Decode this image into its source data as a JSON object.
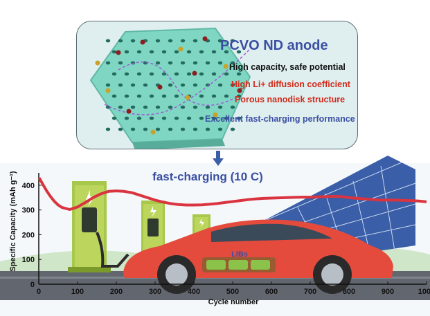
{
  "panel": {
    "title": "PCVO ND anode",
    "features": [
      {
        "text": "High capacity, safe potential",
        "color": "#111111"
      },
      {
        "text": "High Li+ diffusion coefficient",
        "color": "#d12a1a"
      },
      {
        "text": "Porous nanodisk structure",
        "color": "#d12a1a"
      },
      {
        "text": "Excellent fast-charging performance",
        "color": "#3a4fa3"
      }
    ]
  },
  "illustration": {
    "battery_label": "LIBs"
  },
  "chart_data": {
    "type": "line",
    "title": "fast-charging (10 C)",
    "xlabel": "Cycle number",
    "ylabel": "Specific Capacity (mAh g⁻¹)",
    "xlim": [
      0,
      1000
    ],
    "ylim": [
      0,
      450
    ],
    "xticks": [
      0,
      100,
      200,
      300,
      400,
      500,
      600,
      700,
      800,
      900,
      1000
    ],
    "yticks": [
      0,
      100,
      200,
      300,
      400
    ],
    "series": [
      {
        "color": "#d9343f",
        "x": [
          1,
          10,
          20,
          30,
          40,
          50,
          60,
          80,
          100,
          120,
          140,
          160,
          180,
          200,
          220,
          240,
          260,
          280,
          300,
          320,
          340,
          360,
          380,
          400,
          420,
          440,
          460,
          480,
          500,
          520,
          540,
          560,
          580,
          600,
          620,
          640,
          660,
          680,
          700,
          720,
          740,
          760,
          780,
          800,
          820,
          840,
          860,
          880,
          900,
          920,
          940,
          960,
          980,
          1000
        ],
        "y": [
          430,
          405,
          378,
          355,
          335,
          320,
          310,
          302,
          312,
          330,
          350,
          365,
          375,
          377,
          375,
          370,
          360,
          350,
          340,
          332,
          326,
          322,
          320,
          320,
          321,
          323,
          326,
          330,
          334,
          338,
          342,
          345,
          347,
          348,
          349,
          350,
          351,
          352,
          352,
          353,
          354,
          355,
          354,
          350,
          347,
          345,
          342,
          340,
          340,
          340,
          339,
          338,
          336,
          333
        ]
      }
    ],
    "colors": {
      "accent": "#3a4fa3",
      "curve": "#d9343f"
    }
  }
}
